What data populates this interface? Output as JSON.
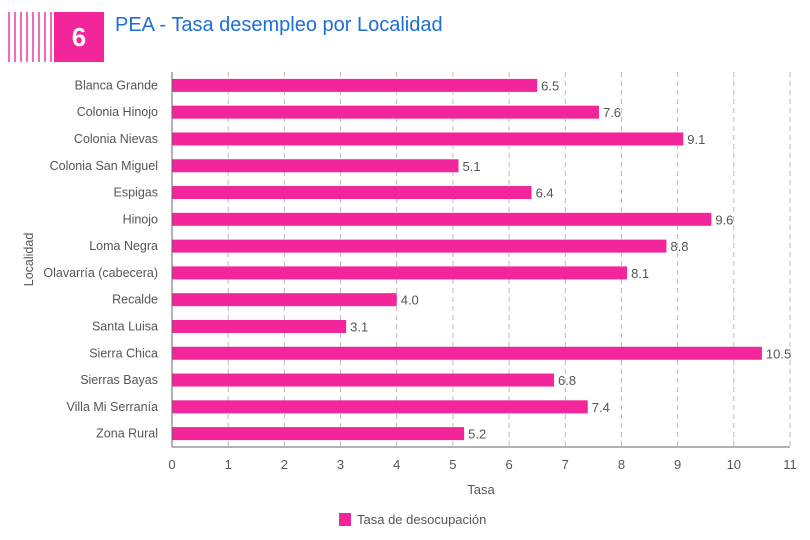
{
  "header": {
    "number": "6",
    "title": "PEA - Tasa desempleo por Localidad"
  },
  "chart_data": {
    "type": "bar",
    "orientation": "horizontal",
    "categories": [
      "Blanca Grande",
      "Colonia Hinojo",
      "Colonia Nievas",
      "Colonia San Miguel",
      "Espigas",
      "Hinojo",
      "Loma Negra",
      "Olavarría (cabecera)",
      "Recalde",
      "Santa Luisa",
      "Sierra Chica",
      "Sierras Bayas",
      "Villa Mi Serranía",
      "Zona Rural"
    ],
    "series": [
      {
        "name": "Tasa de desocupación",
        "values": [
          6.5,
          7.6,
          9.1,
          5.1,
          6.4,
          9.6,
          8.8,
          8.1,
          4.0,
          3.1,
          10.5,
          6.8,
          7.4,
          5.2
        ],
        "color": "#f2259a"
      }
    ],
    "xlabel": "Tasa",
    "ylabel": "Localidad",
    "xlim": [
      0,
      11
    ],
    "xticks": [
      "0",
      "1",
      "2",
      "3",
      "4",
      "5",
      "6",
      "7",
      "8",
      "9",
      "10",
      "11"
    ],
    "grid": "vertical dashed",
    "legend": "bottom"
  }
}
